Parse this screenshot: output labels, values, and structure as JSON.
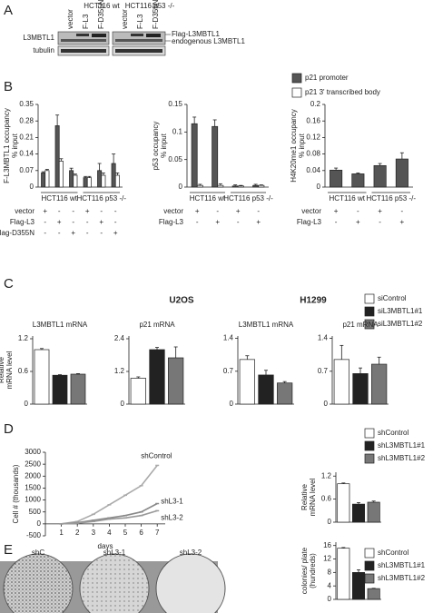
{
  "panel_labels": [
    "A",
    "B",
    "C",
    "D",
    "E"
  ],
  "blot": {
    "cell_lines": [
      "HCT116 wt",
      "HCT116 p53 -/-"
    ],
    "lanes": [
      "vector",
      "F-L3",
      "F-D355N"
    ],
    "rows": [
      "L3MBTL1",
      "tubulin"
    ],
    "band_labels": [
      "Flag-L3MBTL1",
      "endogenous L3MBTL1"
    ]
  },
  "plates": {
    "labels": [
      "shC",
      "shL3-1",
      "shL3-2"
    ]
  },
  "headings": {
    "C": [
      "U2OS",
      "H1299"
    ]
  },
  "legends": {
    "B": [
      {
        "name": "p21 promoter",
        "color": "#555555"
      },
      {
        "name": "p21 3' transcribed body",
        "color": "#ffffff"
      }
    ],
    "C": [
      {
        "name": "siControl",
        "color": "#ffffff"
      },
      {
        "name": "siL3MBTL1#1",
        "color": "#222222"
      },
      {
        "name": "siL3MBTL1#2",
        "color": "#777777"
      }
    ],
    "D": [
      {
        "name": "shControl",
        "color": "#ffffff"
      },
      {
        "name": "shL3MBTL1#1",
        "color": "#222222"
      },
      {
        "name": "shL3MBTL1#2",
        "color": "#777777"
      }
    ],
    "E": [
      {
        "name": "shControl",
        "color": "#ffffff"
      },
      {
        "name": "shL3MBTL1#1",
        "color": "#222222"
      },
      {
        "name": "shL3MBTL1#2",
        "color": "#777777"
      }
    ]
  },
  "chart_data": [
    {
      "type": "bar",
      "legend": "B",
      "ylabel": [
        "F-L3MBTL1 occupancy",
        "% input"
      ],
      "ylim": [
        0,
        0.35
      ],
      "yticks": [
        0,
        0.07,
        0.14,
        0.21,
        0.28,
        0.35
      ],
      "series": [
        {
          "values": [
            0.06,
            0.26,
            0.07,
            0.04,
            0.07,
            0.1
          ],
          "errors": [
            0.005,
            0.045,
            0.01,
            0.005,
            0.03,
            0.04
          ]
        },
        {
          "values": [
            0.07,
            0.11,
            0.05,
            0.04,
            0.05,
            0.05
          ],
          "errors": [
            0.005,
            0.01,
            0.005,
            0.005,
            0.01,
            0.01
          ]
        }
      ],
      "cell_groups": [
        "HCT116 wt",
        "HCT116 p53 -/-"
      ],
      "conditions": [
        {
          "name": "vector",
          "signs": [
            "+",
            "-",
            "-",
            "+",
            "-",
            "-"
          ]
        },
        {
          "name": "Flag-L3",
          "signs": [
            "-",
            "+",
            "-",
            "-",
            "+",
            "-"
          ]
        },
        {
          "name": "Flag-D355N",
          "signs": [
            "-",
            "-",
            "+",
            "-",
            "-",
            "+"
          ]
        }
      ]
    },
    {
      "type": "bar",
      "legend": "B",
      "ylabel": [
        "p53 occupancy",
        "% input"
      ],
      "ylim": [
        0,
        0.15
      ],
      "yticks": [
        0,
        0.05,
        0.1,
        0.15
      ],
      "series": [
        {
          "values": [
            0.115,
            0.11,
            0.002,
            0.003
          ],
          "errors": [
            0.012,
            0.012,
            0.002,
            0.002
          ]
        },
        {
          "values": [
            0.003,
            0.003,
            0.002,
            0.003
          ],
          "errors": [
            0.002,
            0.003,
            0.001,
            0.001
          ]
        }
      ],
      "cell_groups": [
        "HCT116 wt",
        "HCT116 p53 -/-"
      ],
      "conditions": [
        {
          "name": "vector",
          "signs": [
            "+",
            "-",
            "+",
            "-"
          ]
        },
        {
          "name": "Flag-L3",
          "signs": [
            "-",
            "+",
            "-",
            "+"
          ]
        }
      ]
    },
    {
      "type": "bar",
      "legend": "B",
      "ylabel": [
        "H4K20me1 occupancy",
        "% input"
      ],
      "ylim": [
        0,
        0.2
      ],
      "yticks": [
        0,
        0.04,
        0.08,
        0.12,
        0.16,
        0.2
      ],
      "series": [
        {
          "values": [
            0.041,
            0.032,
            0.052,
            0.068
          ],
          "errors": [
            0.005,
            0.002,
            0.005,
            0.015
          ]
        }
      ],
      "cell_groups": [
        "HCT116 wt",
        "HCT116 p53 -/-"
      ],
      "conditions": [
        {
          "name": "vector",
          "signs": [
            "+",
            "-",
            "+",
            "-"
          ]
        },
        {
          "name": "Flag-L3",
          "signs": [
            "-",
            "+",
            "-",
            "+"
          ]
        }
      ]
    },
    {
      "type": "bar",
      "legend": "C",
      "title": "L3MBTL1 mRNA",
      "ylabel": [
        "Relative",
        "mRNA level"
      ],
      "ylim": [
        0,
        1.25
      ],
      "yticks": [
        0,
        0.6,
        1.2
      ],
      "values": [
        1.0,
        0.53,
        0.55
      ],
      "errors": [
        0.02,
        0.01,
        0.01
      ]
    },
    {
      "type": "bar",
      "legend": "C",
      "title": "p21 mRNA",
      "ylim": [
        0,
        2.5
      ],
      "yticks": [
        0,
        1.2,
        2.4
      ],
      "values": [
        0.95,
        2.0,
        1.7
      ],
      "errors": [
        0.05,
        0.08,
        0.4
      ]
    },
    {
      "type": "bar",
      "legend": "C",
      "title": "L3MBTL1 mRNA",
      "ylim": [
        0,
        1.45
      ],
      "yticks": [
        0,
        0.7,
        1.4
      ],
      "values": [
        0.95,
        0.62,
        0.45
      ],
      "errors": [
        0.08,
        0.1,
        0.03
      ]
    },
    {
      "type": "bar",
      "legend": "C",
      "title": "p21 mRNA",
      "ylim": [
        0,
        1.45
      ],
      "yticks": [
        0,
        0.7,
        1.4
      ],
      "values": [
        0.95,
        0.65,
        0.85
      ],
      "errors": [
        0.3,
        0.12,
        0.15
      ]
    },
    {
      "type": "line",
      "ylabel": [
        "Cell # (thousands)"
      ],
      "xlabel": "days",
      "xlim": [
        0,
        7.5
      ],
      "xticks": [
        1,
        2,
        3,
        4,
        5,
        6,
        7
      ],
      "ylim": [
        -500,
        3000
      ],
      "yticks": [
        -500,
        0,
        500,
        1000,
        1500,
        2000,
        2500,
        3000
      ],
      "x": [
        1,
        2,
        3,
        4,
        5,
        6,
        7
      ],
      "series": [
        {
          "name": "shControl",
          "color": "#aaaaaa",
          "values": [
            0,
            100,
            400,
            800,
            1200,
            1600,
            2450
          ]
        },
        {
          "name": "shL3-1",
          "color": "#888888",
          "values": [
            0,
            50,
            150,
            250,
            350,
            500,
            850
          ]
        },
        {
          "name": "shL3-2",
          "color": "#999999",
          "values": [
            0,
            30,
            100,
            200,
            250,
            350,
            550
          ]
        }
      ]
    },
    {
      "type": "bar",
      "legend": "D",
      "ylabel": [
        "Relative",
        "mRNA level"
      ],
      "ylim": [
        0,
        1.3
      ],
      "yticks": [
        0,
        0.6,
        1.2
      ],
      "values": [
        1.0,
        0.47,
        0.52
      ],
      "errors": [
        0.02,
        0.04,
        0.03
      ]
    },
    {
      "type": "bar",
      "legend": "E",
      "ylabel": [
        "colonies/ plate",
        "(hundreds)"
      ],
      "ylim": [
        0,
        17
      ],
      "yticks": [
        0,
        4,
        8,
        12,
        16
      ],
      "values": [
        15.2,
        8,
        3.2
      ],
      "errors": [
        0.2,
        0.8,
        0.1
      ]
    }
  ]
}
